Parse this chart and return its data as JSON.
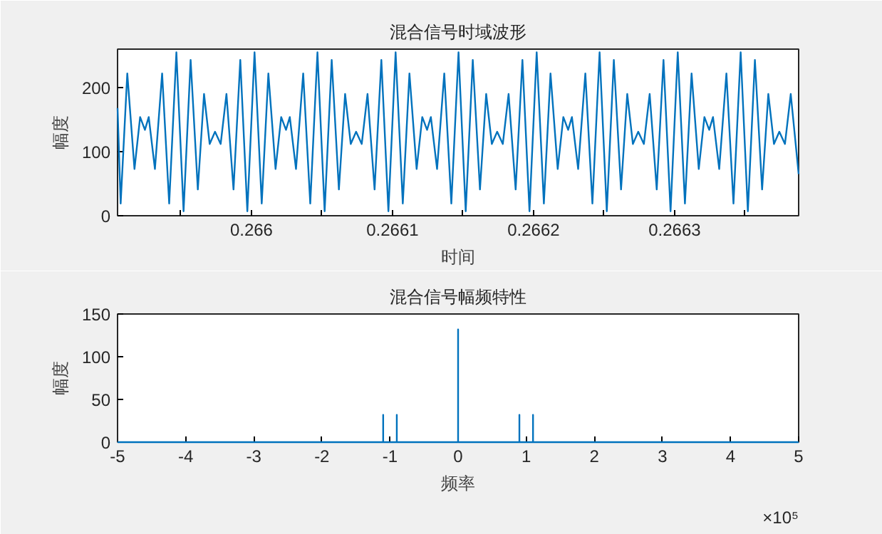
{
  "chart_data": [
    {
      "type": "line",
      "title": "混合信号时域波形",
      "xlabel": "时间",
      "ylabel": "幅度",
      "xlim": [
        0.2659051,
        0.2663879
      ],
      "ylim": [
        0,
        260
      ],
      "grid": false,
      "marker": "none",
      "line_style": "solid",
      "xticks": [
        {
          "value": 0.26595,
          "label": null
        },
        0.266,
        {
          "value": 0.26605,
          "label": null
        },
        0.2661,
        {
          "value": 0.26615,
          "label": null
        },
        0.2662,
        {
          "value": 0.26625,
          "label": null
        },
        0.2663,
        {
          "value": 0.26635,
          "label": null
        }
      ],
      "yticks": [
        0,
        100,
        200
      ],
      "series": [
        {
          "color": "#0072bd",
          "x": [
            0.2659051,
            0.2659073,
            0.265912,
            0.2659171,
            0.2659211,
            0.2659245,
            0.2659272,
            0.2659316,
            0.2659367,
            0.2659417,
            0.2659468,
            0.2659519,
            0.2659569,
            0.265962,
            0.2659664,
            0.2659704,
            0.2659742,
            0.2659782,
            0.2659823,
            0.2659873,
            0.2659921,
            0.2659971,
            0.2660022,
            0.2660073,
            0.266012,
            0.2660171,
            0.2660211,
            0.2660245,
            0.2660272,
            0.2660316,
            0.2660367,
            0.2660417,
            0.2660468,
            0.2660519,
            0.2660569,
            0.266062,
            0.2660664,
            0.2660704,
            0.2660742,
            0.2660782,
            0.2660823,
            0.2660873,
            0.2660921,
            0.2660971,
            0.2661022,
            0.2661073,
            0.266112,
            0.2661171,
            0.2661211,
            0.2661245,
            0.2661272,
            0.2661316,
            0.2661367,
            0.2661417,
            0.2661468,
            0.2661519,
            0.2661569,
            0.266162,
            0.2661664,
            0.2661704,
            0.2661742,
            0.2661782,
            0.2661823,
            0.2661873,
            0.2661921,
            0.2661971,
            0.2662022,
            0.2662073,
            0.266212,
            0.2662171,
            0.2662211,
            0.2662245,
            0.2662272,
            0.2662316,
            0.2662367,
            0.2662417,
            0.2662468,
            0.2662519,
            0.2662569,
            0.266262,
            0.2662664,
            0.2662704,
            0.2662742,
            0.2662782,
            0.2662823,
            0.2662873,
            0.2662921,
            0.2662971,
            0.2663022,
            0.2663073,
            0.266312,
            0.2663171,
            0.2663211,
            0.2663245,
            0.2663272,
            0.2663316,
            0.2663367,
            0.2663417,
            0.2663468,
            0.2663519,
            0.2663569,
            0.266362,
            0.2663664,
            0.2663704,
            0.2663742,
            0.2663782,
            0.2663823,
            0.2663879
          ],
          "values": [
            168,
            19,
            222,
            73,
            154,
            134,
            154,
            73,
            222,
            19,
            255,
            7,
            243,
            41,
            190,
            112,
            131,
            112,
            190,
            41,
            243,
            7,
            255,
            19,
            222,
            73,
            154,
            134,
            154,
            73,
            222,
            19,
            255,
            7,
            243,
            41,
            190,
            112,
            131,
            112,
            190,
            41,
            243,
            7,
            255,
            19,
            222,
            73,
            154,
            134,
            154,
            73,
            222,
            19,
            255,
            7,
            243,
            41,
            190,
            112,
            131,
            112,
            190,
            41,
            243,
            7,
            255,
            19,
            222,
            73,
            154,
            134,
            154,
            73,
            222,
            19,
            255,
            7,
            243,
            41,
            190,
            112,
            131,
            112,
            190,
            41,
            243,
            7,
            255,
            19,
            222,
            73,
            154,
            134,
            154,
            73,
            222,
            19,
            255,
            7,
            243,
            41,
            190,
            112,
            131,
            112,
            190,
            65
          ]
        }
      ]
    },
    {
      "type": "line",
      "title": "混合信号幅频特性",
      "xlabel": "频率",
      "ylabel": "幅度",
      "xlim": [
        -5,
        5
      ],
      "ylim": [
        0,
        150
      ],
      "grid": false,
      "marker": "none",
      "line_style": "solid",
      "xticks": [
        -5,
        -4,
        -3,
        -2,
        -1,
        0,
        1,
        2,
        3,
        4,
        5
      ],
      "yticks": [
        0,
        50,
        100,
        150
      ],
      "annotations": [
        "×10⁵"
      ],
      "series": [
        {
          "color": "#0072bd",
          "x": [
            -5,
            -1.1,
            -1.1,
            -1.1,
            -0.9,
            -0.9,
            -0.9,
            0,
            0,
            0,
            0.9,
            0.9,
            0.9,
            1.1,
            1.1,
            1.1,
            5
          ],
          "values": [
            0,
            0,
            32,
            0,
            0,
            32,
            0,
            0,
            132,
            0,
            0,
            32,
            0,
            0,
            32,
            0,
            0
          ]
        }
      ]
    }
  ]
}
